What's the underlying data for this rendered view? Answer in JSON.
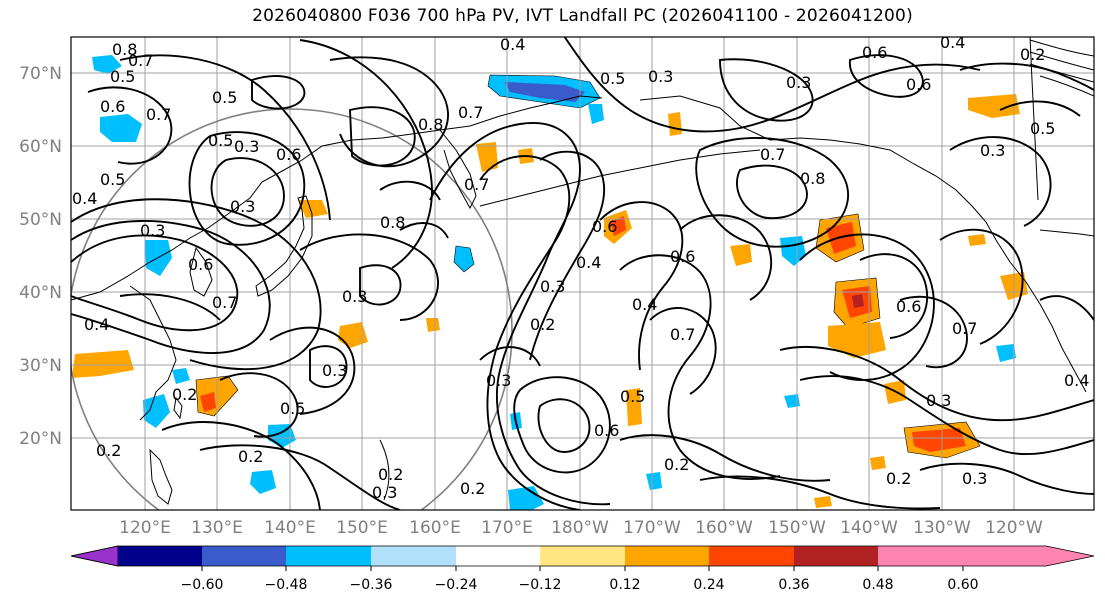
{
  "title": "2026040800 F036 700 hPa PV, IVT Landfall PC (2026041100 - 2026041200)",
  "lat_labels": [
    "70°N",
    "60°N",
    "50°N",
    "40°N",
    "30°N",
    "20°N"
  ],
  "lon_labels": [
    "120°E",
    "130°E",
    "140°E",
    "150°E",
    "160°E",
    "170°E",
    "180°W",
    "170°W",
    "160°W",
    "150°W",
    "140°W",
    "130°W",
    "120°W"
  ],
  "colorbar": {
    "ticks": [
      "−0.60",
      "−0.48",
      "−0.36",
      "−0.24",
      "−0.12",
      "0.12",
      "0.24",
      "0.36",
      "0.48",
      "0.60"
    ],
    "colors": [
      "#9932cc",
      "#00008b",
      "#3a5bcc",
      "#00bfff",
      "#b0e0fa",
      "#ffffff",
      "#ffe680",
      "#ffa500",
      "#ff4500",
      "#b22222",
      "#ff85b0"
    ]
  },
  "contour_labels": [
    "0.8",
    "0.7",
    "0.5",
    "0.6",
    "0.7",
    "0.5",
    "0.5",
    "0.6",
    "0.3",
    "0.4",
    "0.3",
    "0.6",
    "0.7",
    "0.4",
    "0.5",
    "0.3",
    "0.7",
    "0.8",
    "0.7",
    "0.8",
    "0.6",
    "0.5",
    "0.3",
    "0.3",
    "0.4",
    "0.3",
    "0.2",
    "0.4",
    "0.7",
    "0.6",
    "0.3",
    "0.5",
    "0.6",
    "0.2",
    "0.2",
    "0.3",
    "0.2",
    "0.2",
    "0.8",
    "0.7",
    "0.6",
    "0.3",
    "0.3",
    "0.2",
    "0.6",
    "0.4",
    "0.6",
    "0.5",
    "0.3",
    "0.3",
    "0.4",
    "0.2",
    "0.3",
    "0.7",
    "0.4",
    "0.5",
    "0.2",
    "0.2"
  ]
}
